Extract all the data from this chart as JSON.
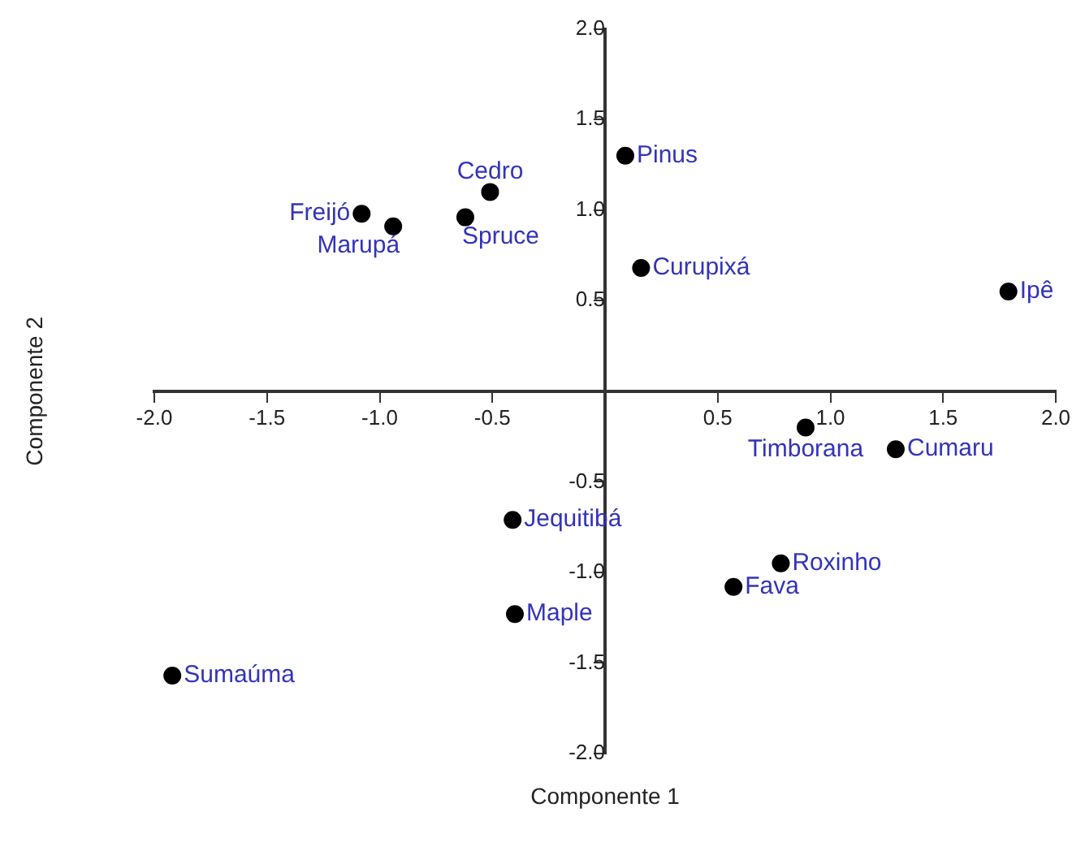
{
  "chart_data": {
    "type": "scatter",
    "xlabel": "Componente 1",
    "ylabel": "Componente 2",
    "x": [
      -1.08,
      -0.94,
      -0.51,
      -0.62,
      0.09,
      0.16,
      1.79,
      0.89,
      1.29,
      -0.41,
      0.78,
      0.57,
      -0.4,
      -1.92
    ],
    "series": [
      {
        "color": "#000000",
        "values": [
          0.98,
          0.91,
          1.1,
          0.96,
          1.3,
          0.68,
          0.55,
          -0.2,
          -0.32,
          -0.71,
          -0.95,
          -1.08,
          -1.23,
          -1.57
        ]
      }
    ],
    "marker": "circle",
    "xlim": [
      -2,
      2
    ],
    "ylim": [
      -2,
      2
    ],
    "xticks": [
      {
        "value": -2,
        "label": "-2.0"
      },
      -1.5,
      {
        "value": -1,
        "label": "-1.0"
      },
      -0.5,
      0.5,
      {
        "value": 1,
        "label": "1.0"
      },
      1.5,
      {
        "value": 2,
        "label": "2.0"
      }
    ],
    "yticks": [
      {
        "value": -2,
        "label": "-2.0"
      },
      -1.5,
      {
        "value": -1,
        "label": "-1.0"
      },
      -0.5,
      0.5,
      {
        "value": 1,
        "label": "1.0"
      },
      1.5,
      {
        "value": 2,
        "label": "2.0"
      }
    ],
    "annotations": [
      {
        "text": "Freijó",
        "x": -1.08,
        "y": 0.98
      },
      {
        "text": "Marupá",
        "x": -0.94,
        "y": 0.91
      },
      {
        "text": "Cedro",
        "x": -0.51,
        "y": 1.1
      },
      {
        "text": "Spruce",
        "x": -0.62,
        "y": 0.96
      },
      {
        "text": "Pinus",
        "x": 0.09,
        "y": 1.3
      },
      {
        "text": "Curupixá",
        "x": 0.16,
        "y": 0.68
      },
      {
        "text": "Ipê",
        "x": 1.79,
        "y": 0.55
      },
      {
        "text": "Timborana",
        "x": 0.89,
        "y": -0.2
      },
      {
        "text": "Cumaru",
        "x": 1.29,
        "y": -0.32
      },
      {
        "text": "Jequitibá",
        "x": -0.41,
        "y": -0.71
      },
      {
        "text": "Roxinho",
        "x": 0.78,
        "y": -0.95
      },
      {
        "text": "Fava",
        "x": 0.57,
        "y": -1.08
      },
      {
        "text": "Maple",
        "x": -0.4,
        "y": -1.23
      },
      {
        "text": "Sumaúma",
        "x": -1.92,
        "y": -1.57
      }
    ]
  }
}
